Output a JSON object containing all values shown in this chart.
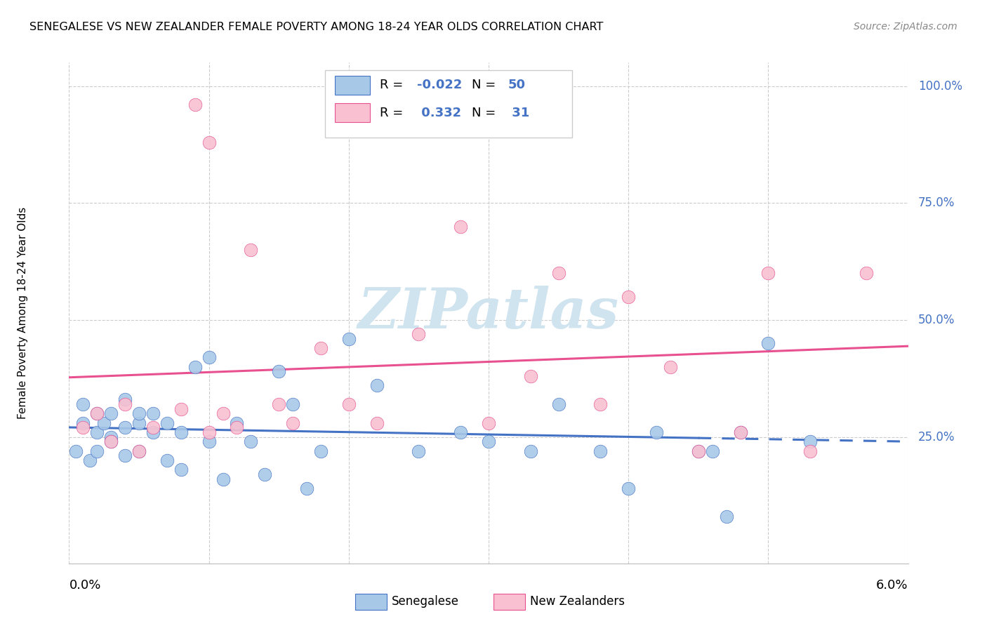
{
  "title": "SENEGALESE VS NEW ZEALANDER FEMALE POVERTY AMONG 18-24 YEAR OLDS CORRELATION CHART",
  "source": "Source: ZipAtlas.com",
  "ylabel": "Female Poverty Among 18-24 Year Olds",
  "legend_blue_r": "-0.022",
  "legend_blue_n": "50",
  "legend_pink_r": "0.332",
  "legend_pink_n": "31",
  "legend_label_blue": "Senegalese",
  "legend_label_pink": "New Zealanders",
  "blue_dot_color": "#a8c8e8",
  "pink_dot_color": "#f8c0d0",
  "blue_line_color": "#4472C4",
  "pink_line_color": "#e85090",
  "watermark_color": "#d0e4f0",
  "xlim": [
    0.0,
    0.06
  ],
  "ylim": [
    -0.02,
    1.05
  ],
  "blue_x": [
    0.0005,
    0.001,
    0.001,
    0.0015,
    0.002,
    0.002,
    0.002,
    0.0025,
    0.003,
    0.003,
    0.003,
    0.004,
    0.004,
    0.004,
    0.005,
    0.005,
    0.005,
    0.006,
    0.006,
    0.007,
    0.007,
    0.008,
    0.008,
    0.009,
    0.01,
    0.01,
    0.011,
    0.012,
    0.013,
    0.014,
    0.015,
    0.016,
    0.017,
    0.018,
    0.02,
    0.022,
    0.025,
    0.028,
    0.03,
    0.033,
    0.035,
    0.038,
    0.04,
    0.042,
    0.045,
    0.048,
    0.05,
    0.053,
    0.046,
    0.047
  ],
  "blue_y": [
    0.22,
    0.28,
    0.32,
    0.2,
    0.3,
    0.26,
    0.22,
    0.28,
    0.25,
    0.3,
    0.24,
    0.27,
    0.21,
    0.33,
    0.28,
    0.22,
    0.3,
    0.26,
    0.3,
    0.28,
    0.2,
    0.26,
    0.18,
    0.4,
    0.42,
    0.24,
    0.16,
    0.28,
    0.24,
    0.17,
    0.39,
    0.32,
    0.14,
    0.22,
    0.46,
    0.36,
    0.22,
    0.26,
    0.24,
    0.22,
    0.32,
    0.22,
    0.14,
    0.26,
    0.22,
    0.26,
    0.45,
    0.24,
    0.22,
    0.08
  ],
  "pink_x": [
    0.001,
    0.002,
    0.003,
    0.004,
    0.005,
    0.006,
    0.008,
    0.009,
    0.01,
    0.01,
    0.011,
    0.012,
    0.013,
    0.015,
    0.016,
    0.018,
    0.02,
    0.022,
    0.025,
    0.028,
    0.03,
    0.033,
    0.035,
    0.038,
    0.04,
    0.043,
    0.045,
    0.048,
    0.05,
    0.053,
    0.057
  ],
  "pink_y": [
    0.27,
    0.3,
    0.24,
    0.32,
    0.22,
    0.27,
    0.31,
    0.96,
    0.88,
    0.26,
    0.3,
    0.27,
    0.65,
    0.32,
    0.28,
    0.44,
    0.32,
    0.28,
    0.47,
    0.7,
    0.28,
    0.38,
    0.6,
    0.32,
    0.55,
    0.4,
    0.22,
    0.26,
    0.6,
    0.22,
    0.6
  ]
}
